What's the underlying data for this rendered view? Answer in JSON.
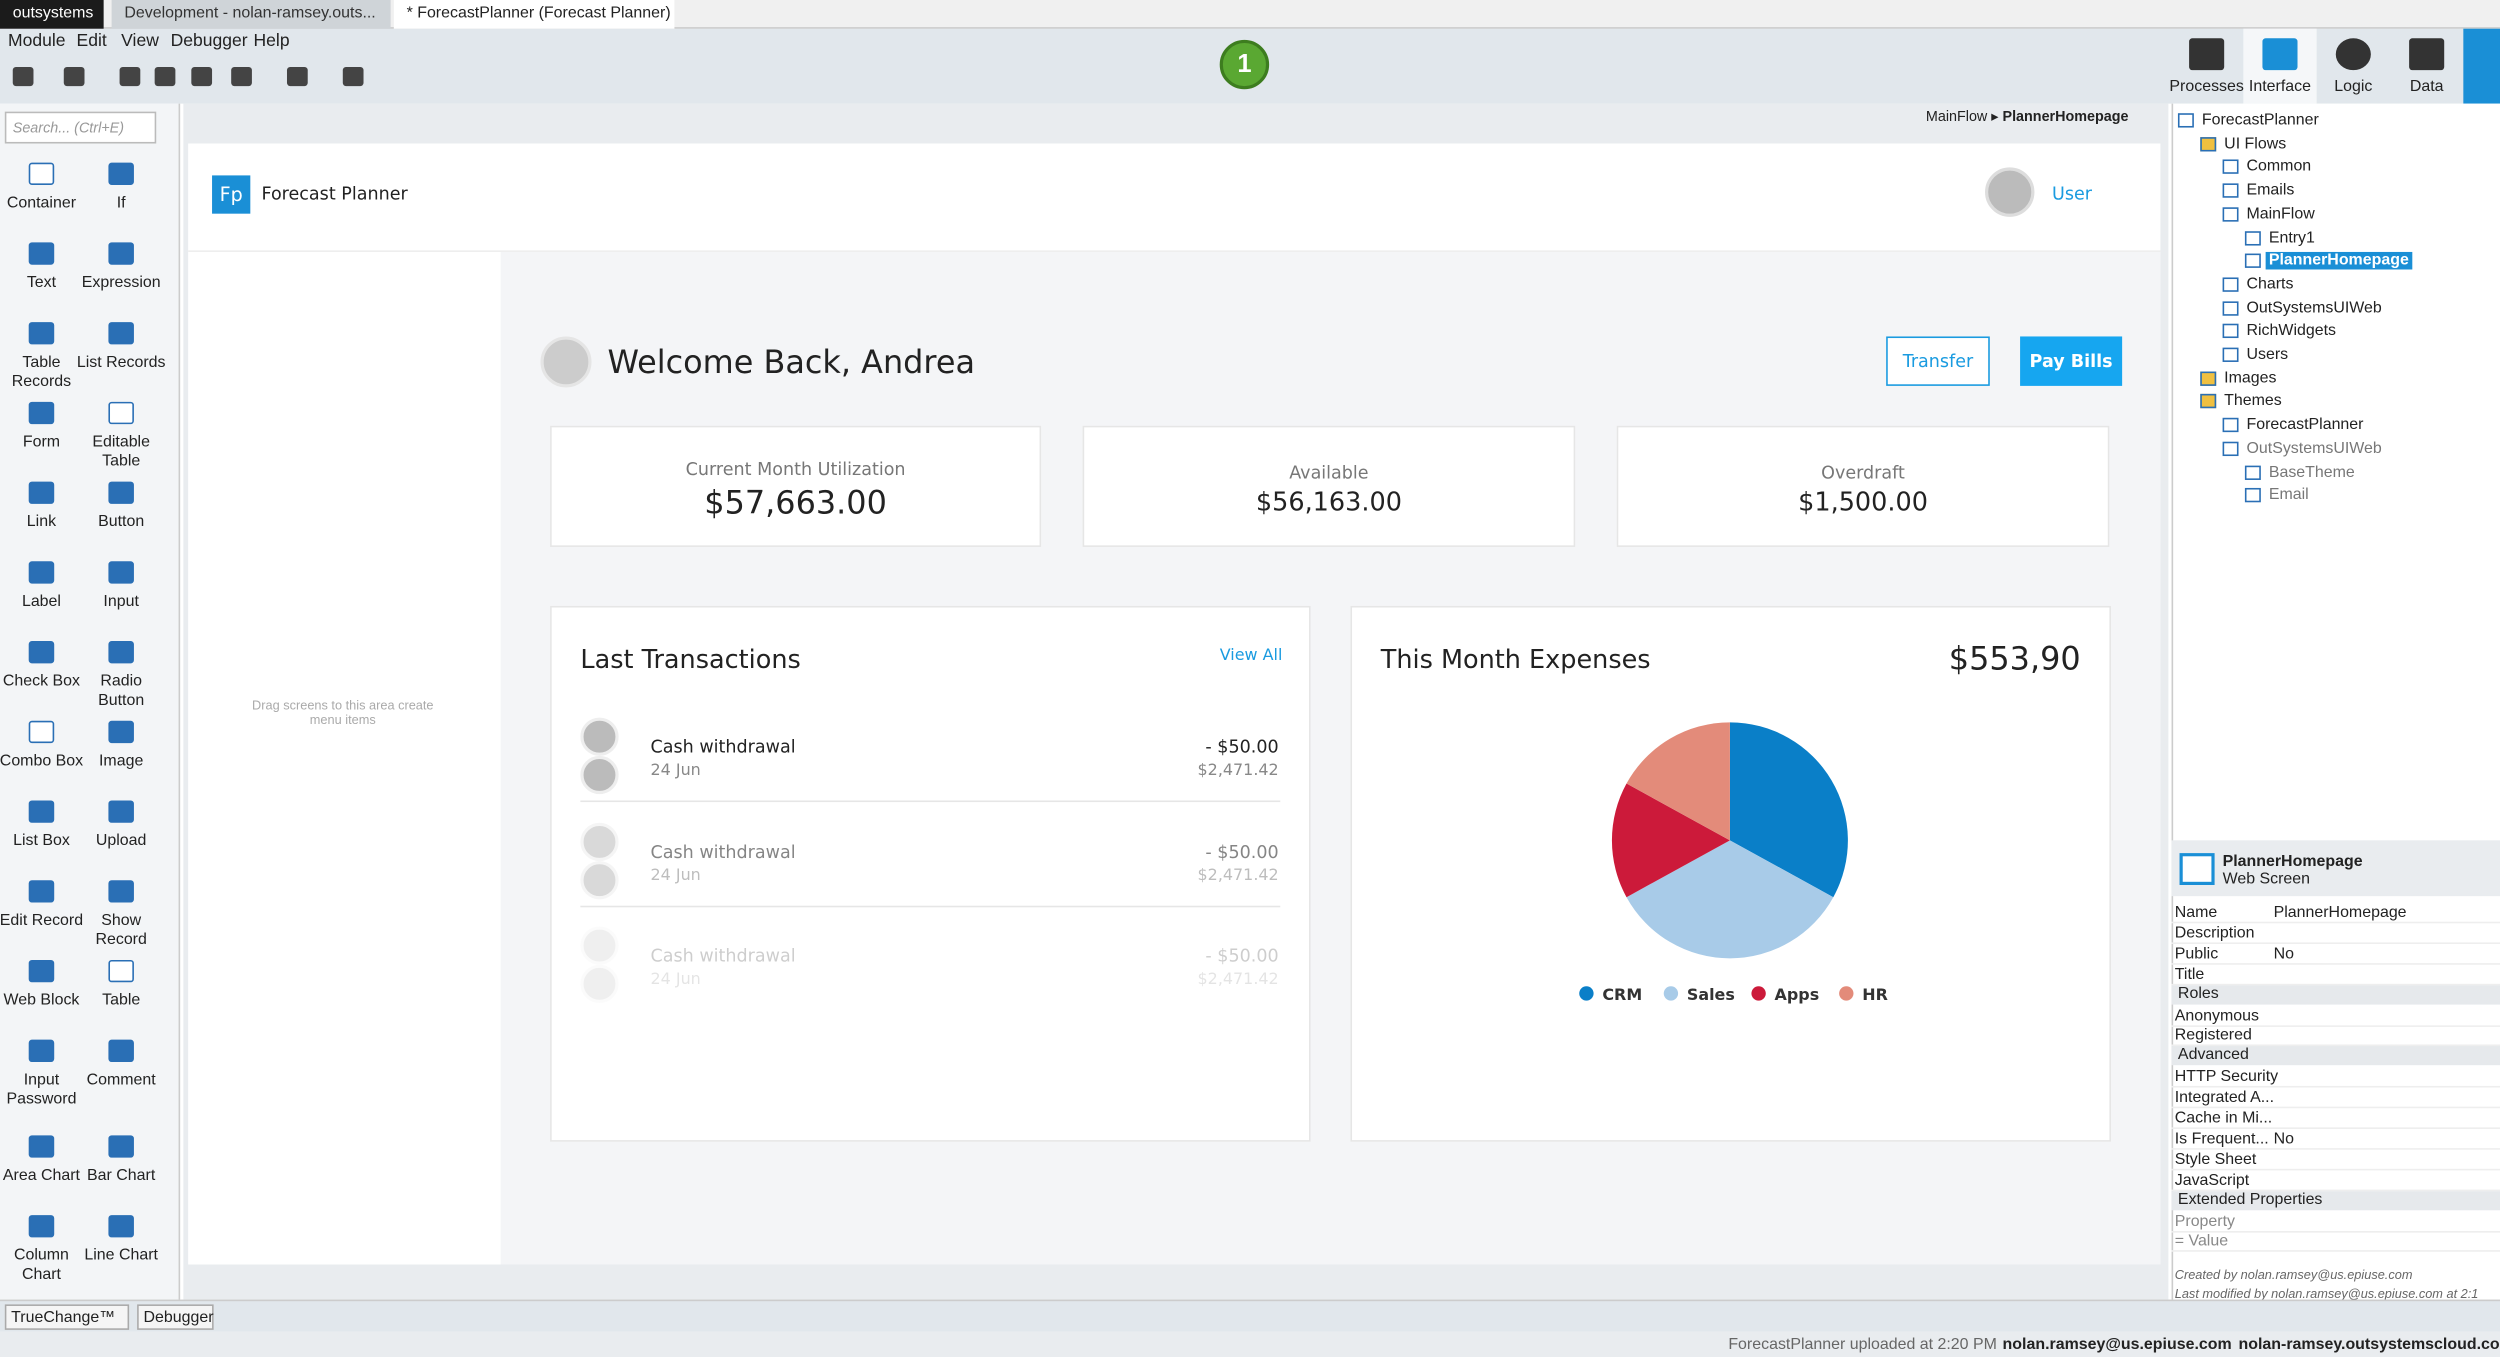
{
  "tabs": [
    "outsystems",
    "Development - nolan-ramsey.outs...",
    "* ForecastPlanner (Forecast Planner)"
  ],
  "menu": [
    "Module",
    "Edit",
    "View",
    "Debugger",
    "Help"
  ],
  "badge": "1",
  "top_tabs": [
    "Processes",
    "Interface",
    "Logic",
    "Data"
  ],
  "search_placeholder": "Search... (Ctrl+E)",
  "toolbox": [
    "Container",
    "If",
    "Text",
    "Expression",
    "Table Records",
    "List Records",
    "Form",
    "Editable Table",
    "Link",
    "Button",
    "Label",
    "Input",
    "Check Box",
    "Radio Button",
    "Combo Box",
    "Image",
    "List Box",
    "Upload",
    "Edit Record",
    "Show Record",
    "Web Block",
    "Table",
    "Input Password",
    "Comment",
    "Area Chart",
    "Bar Chart",
    "Column Chart",
    "Line Chart"
  ],
  "canvas_hint": "Drag screens to this area create menu items",
  "breadcrumb": [
    "MainFlow",
    "PlannerHomepage"
  ],
  "app": {
    "logo": "Fp",
    "name": "Forecast Planner",
    "user": "User",
    "welcome": "Welcome Back, Andrea",
    "buttons": [
      "Transfer",
      "Pay Bills"
    ],
    "cards": [
      {
        "label": "Current Month Utilization",
        "value": "$57,663.00"
      },
      {
        "label": "Available",
        "value": "$56,163.00"
      },
      {
        "label": "Overdraft",
        "value": "$1,500.00"
      }
    ],
    "transactions_title": "Last Transactions",
    "view_all": "View All",
    "transactions": [
      {
        "desc": "Cash withdrawal",
        "date": "24 Jun",
        "amount": "- $50.00",
        "balance": "$2,471.42"
      },
      {
        "desc": "Cash withdrawal",
        "date": "24 Jun",
        "amount": "- $50.00",
        "balance": "$2,471.42"
      },
      {
        "desc": "Cash withdrawal",
        "date": "24 Jun",
        "amount": "- $50.00",
        "balance": "$2,471.42"
      }
    ],
    "expenses_total": "$553,90"
  },
  "chart_data": {
    "type": "pie",
    "title": "This Month Expenses",
    "categories": [
      "CRM",
      "Sales",
      "Apps",
      "HR"
    ],
    "values": [
      33,
      34,
      16,
      17
    ],
    "colors": [
      "#0a7fc8",
      "#a8cbe8",
      "#cc1a3a",
      "#e38b7a"
    ]
  },
  "tree": [
    "ForecastPlanner",
    "UI Flows",
    "Common",
    "Emails",
    "MainFlow",
    "Entry1",
    "PlannerHomepage",
    "Charts",
    "OutSystemsUIWeb",
    "RichWidgets",
    "Users",
    "Images",
    "Themes",
    "ForecastPlanner",
    "OutSystemsUIWeb",
    "BaseTheme",
    "Email"
  ],
  "properties": {
    "title": "PlannerHomepage",
    "subtitle": "Web Screen",
    "rows": [
      {
        "name": "Name",
        "value": "PlannerHomepage"
      },
      {
        "name": "Description"
      },
      {
        "name": "Public",
        "value": "No"
      },
      {
        "name": "Title"
      },
      {
        "section": "Roles"
      },
      {
        "name": "Anonymous"
      },
      {
        "name": "Registered"
      },
      {
        "section": "Advanced"
      },
      {
        "name": "HTTP Security"
      },
      {
        "name": "Integrated A..."
      },
      {
        "name": "Cache in Mi..."
      },
      {
        "name": "Is Frequent...",
        "value": "No"
      },
      {
        "name": "Style Sheet"
      },
      {
        "name": "JavaScript"
      },
      {
        "section": "Extended Properties"
      },
      {
        "name": "Property"
      },
      {
        "name": "= Value"
      }
    ],
    "created": "Created by nolan.ramsey@us.epiuse.com",
    "modified": "Last modified by nolan.ramsey@us.epiuse.com at 2:1"
  },
  "bottom_tabs": [
    "TrueChange™",
    "Debugger"
  ],
  "status": [
    "ForecastPlanner uploaded at 2:20 PM",
    "nolan.ramsey@us.epiuse.com",
    "nolan-ramsey.outsystemscloud.com"
  ]
}
